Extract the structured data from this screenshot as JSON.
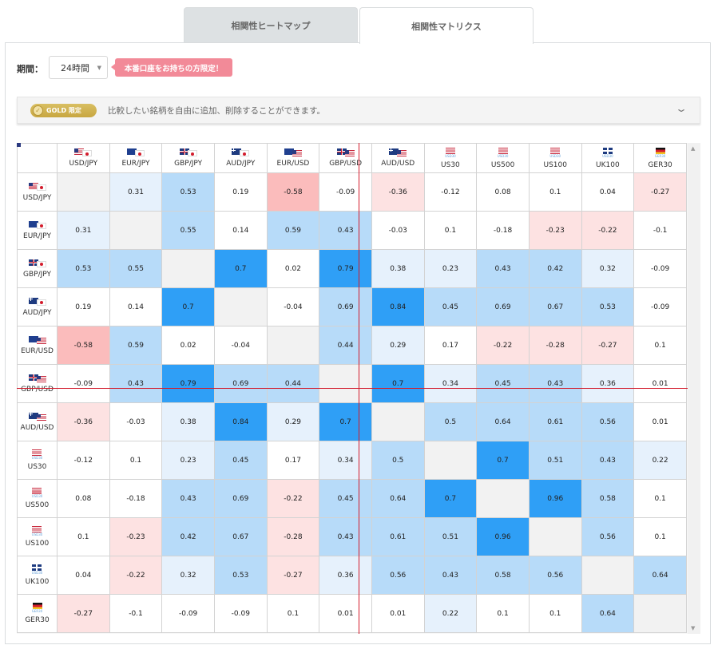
{
  "tabs": [
    {
      "label": "相関性ヒートマップ",
      "active": false
    },
    {
      "label": "相関性マトリクス",
      "active": true
    }
  ],
  "period": {
    "label": "期間：",
    "value": "24時間"
  },
  "promo": {
    "label": "本番口座をお持ちの方限定！"
  },
  "gold": {
    "badge": "GOLD",
    "badge_sub": "限定",
    "text": "比較したい銘柄を自由に追加、削除することができます。"
  },
  "colors": {
    "self": "#f2f2f2",
    "pos_weak": "#e6f1fc",
    "pos_mid": "#b7dbf9",
    "pos_strong": "#2f9ff6",
    "neg_weak": "#fde2e2",
    "neg_mid": "#fbbcbc"
  },
  "symbols": [
    {
      "name": "USD/JPY",
      "flags": [
        "us",
        "jp"
      ],
      "sub": ""
    },
    {
      "name": "EUR/JPY",
      "flags": [
        "eu",
        "jp"
      ],
      "sub": ""
    },
    {
      "name": "GBP/JPY",
      "flags": [
        "gb",
        "jp"
      ],
      "sub": ""
    },
    {
      "name": "AUD/JPY",
      "flags": [
        "au",
        "jp"
      ],
      "sub": ""
    },
    {
      "name": "EUR/USD",
      "flags": [
        "eu",
        "us"
      ],
      "sub": ""
    },
    {
      "name": "GBP/USD",
      "flags": [
        "gb",
        "us"
      ],
      "sub": ""
    },
    {
      "name": "AUD/USD",
      "flags": [
        "au",
        "us"
      ],
      "sub": ""
    },
    {
      "name": "US30",
      "flags": [
        "us"
      ],
      "sub": "USD30"
    },
    {
      "name": "US500",
      "flags": [
        "us"
      ],
      "sub": "USD30"
    },
    {
      "name": "US100",
      "flags": [
        "us"
      ],
      "sub": "USD30"
    },
    {
      "name": "UK100",
      "flags": [
        "gb"
      ],
      "sub": "USD30"
    },
    {
      "name": "GER30",
      "flags": [
        "de"
      ],
      "sub": "GER30"
    }
  ],
  "matrix": [
    [
      "",
      "0.31",
      "0.53",
      "0.19",
      "-0.58",
      "-0.09",
      "-0.36",
      "-0.12",
      "0.08",
      "0.1",
      "0.04",
      "-0.27"
    ],
    [
      "0.31",
      "",
      "0.55",
      "0.14",
      "0.59",
      "0.43",
      "-0.03",
      "0.1",
      "-0.18",
      "-0.23",
      "-0.22",
      "-0.1"
    ],
    [
      "0.53",
      "0.55",
      "",
      "0.7",
      "0.02",
      "0.79",
      "0.38",
      "0.23",
      "0.43",
      "0.42",
      "0.32",
      "-0.09"
    ],
    [
      "0.19",
      "0.14",
      "0.7",
      "",
      "-0.04",
      "0.69",
      "0.84",
      "0.45",
      "0.69",
      "0.67",
      "0.53",
      "-0.09"
    ],
    [
      "-0.58",
      "0.59",
      "0.02",
      "-0.04",
      "",
      "0.44",
      "0.29",
      "0.17",
      "-0.22",
      "-0.28",
      "-0.27",
      "0.1"
    ],
    [
      "-0.09",
      "0.43",
      "0.79",
      "0.69",
      "0.44",
      "",
      "0.7",
      "0.34",
      "0.45",
      "0.43",
      "0.36",
      "0.01"
    ],
    [
      "-0.36",
      "-0.03",
      "0.38",
      "0.84",
      "0.29",
      "0.7",
      "",
      "0.5",
      "0.64",
      "0.61",
      "0.56",
      "0.01"
    ],
    [
      "-0.12",
      "0.1",
      "0.23",
      "0.45",
      "0.17",
      "0.34",
      "0.5",
      "",
      "0.7",
      "0.51",
      "0.43",
      "0.22"
    ],
    [
      "0.08",
      "-0.18",
      "0.43",
      "0.69",
      "-0.22",
      "0.45",
      "0.64",
      "0.7",
      "",
      "0.96",
      "0.58",
      "0.1"
    ],
    [
      "0.1",
      "-0.23",
      "0.42",
      "0.67",
      "-0.28",
      "0.43",
      "0.61",
      "0.51",
      "0.96",
      "",
      "0.56",
      "0.1"
    ],
    [
      "0.04",
      "-0.22",
      "0.32",
      "0.53",
      "-0.27",
      "0.36",
      "0.56",
      "0.43",
      "0.58",
      "0.56",
      "",
      "0.64"
    ],
    [
      "-0.27",
      "-0.1",
      "-0.09",
      "-0.09",
      "0.1",
      "0.01",
      "0.01",
      "0.22",
      "0.1",
      "0.1",
      "0.64",
      ""
    ]
  ],
  "cell_classes": [
    [
      "self",
      "pos1",
      "pos2",
      "none",
      "neg2",
      "none",
      "neg1",
      "none",
      "none",
      "none",
      "none",
      "neg1"
    ],
    [
      "pos1",
      "self",
      "pos2",
      "none",
      "pos2",
      "pos2",
      "none",
      "none",
      "none",
      "neg1",
      "neg1",
      "none"
    ],
    [
      "pos2",
      "pos2",
      "self",
      "pos3",
      "none",
      "pos3",
      "pos1",
      "pos1",
      "pos2",
      "pos2",
      "pos1",
      "none"
    ],
    [
      "none",
      "none",
      "pos3",
      "self",
      "none",
      "pos2",
      "pos3",
      "pos2",
      "pos2",
      "pos2",
      "pos2",
      "none"
    ],
    [
      "neg2",
      "pos2",
      "none",
      "none",
      "self",
      "pos2",
      "pos1",
      "none",
      "neg1",
      "neg1",
      "neg1",
      "none"
    ],
    [
      "none",
      "pos2",
      "pos3",
      "pos2",
      "pos2",
      "self",
      "pos3",
      "pos1",
      "pos2",
      "pos2",
      "pos1",
      "none"
    ],
    [
      "neg1",
      "none",
      "pos1",
      "pos3",
      "pos1",
      "pos3",
      "self",
      "pos2",
      "pos2",
      "pos2",
      "pos2",
      "none"
    ],
    [
      "none",
      "none",
      "pos1",
      "pos2",
      "none",
      "pos1",
      "pos2",
      "self",
      "pos3",
      "pos2",
      "pos2",
      "pos1"
    ],
    [
      "none",
      "none",
      "pos2",
      "pos2",
      "neg1",
      "pos2",
      "pos2",
      "pos3",
      "self",
      "pos3",
      "pos2",
      "none"
    ],
    [
      "none",
      "neg1",
      "pos2",
      "pos2",
      "neg1",
      "pos2",
      "pos2",
      "pos2",
      "pos3",
      "self",
      "pos2",
      "none"
    ],
    [
      "none",
      "neg1",
      "pos1",
      "pos2",
      "neg1",
      "pos1",
      "pos2",
      "pos2",
      "pos2",
      "pos2",
      "self",
      "pos2"
    ],
    [
      "neg1",
      "none",
      "none",
      "none",
      "none",
      "none",
      "none",
      "pos1",
      "none",
      "none",
      "pos2",
      "self"
    ]
  ]
}
